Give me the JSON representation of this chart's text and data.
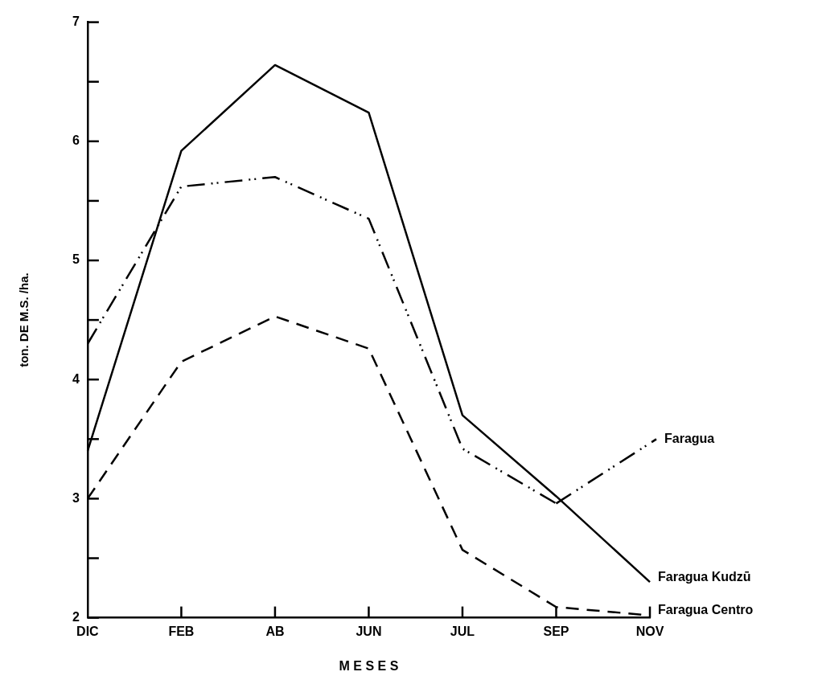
{
  "chart_data": {
    "type": "line",
    "xlabel": "M E S E S",
    "ylabel": "ton. DE M.S. /ha.",
    "categories": [
      "DIC",
      "FEB",
      "AB",
      "JUN",
      "JUL",
      "SEP",
      "NOV"
    ],
    "series": [
      {
        "name": "Faragua",
        "color": "#000000",
        "line_style": "dashdot",
        "values": [
          4.3,
          5.62,
          5.7,
          5.35,
          3.42,
          2.96,
          null
        ]
      },
      {
        "name": "Faragua Kudzū",
        "color": "#000000",
        "line_style": "solid",
        "values": [
          3.4,
          5.92,
          6.64,
          6.24,
          3.7,
          3.02,
          2.3
        ]
      },
      {
        "name": "Faragua Centro",
        "color": "#000000",
        "line_style": "dashed",
        "values": [
          3.0,
          4.15,
          4.53,
          4.26,
          2.57,
          2.09,
          2.02
        ]
      }
    ],
    "ylim": [
      2,
      7
    ],
    "yticks": [
      2,
      {
        "value": 2.5,
        "label": null
      },
      3,
      {
        "value": 3.5,
        "label": null
      },
      4,
      {
        "value": 4.5,
        "label": null
      },
      5,
      {
        "value": 5.5,
        "label": null
      },
      6,
      {
        "value": 6.5,
        "label": null
      },
      7
    ],
    "grid": false,
    "legend": false,
    "marker": "none"
  }
}
